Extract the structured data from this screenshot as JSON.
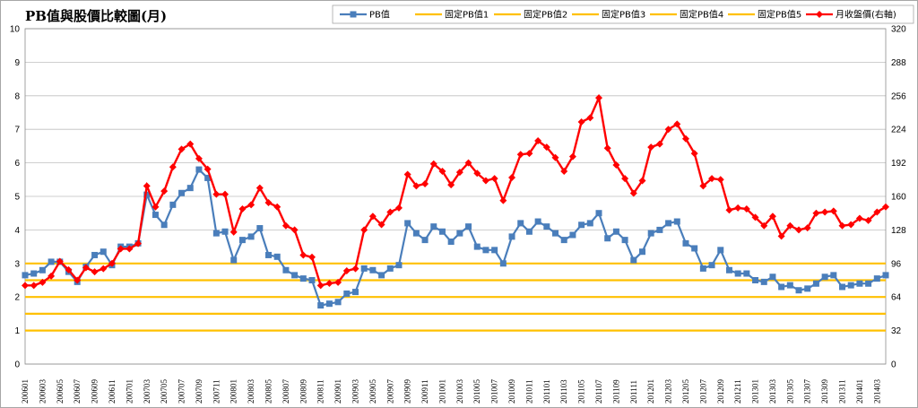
{
  "chart_data": {
    "type": "line",
    "title": "PB值與股價比較圖(月)",
    "colors": {
      "pb": "#4a7ebb",
      "fixed": "#ffc000",
      "price": "#ff0000"
    },
    "y_left": {
      "min": 0,
      "max": 10,
      "ticks": [
        "0",
        "1",
        "2",
        "3",
        "4",
        "5",
        "6",
        "7",
        "8",
        "9",
        "10"
      ]
    },
    "y_right": {
      "min": 0,
      "max": 320,
      "ticks": [
        "0",
        "32",
        "64",
        "96",
        "128",
        "160",
        "192",
        "224",
        "256",
        "288",
        "320"
      ]
    },
    "x_tick_labels": [
      "200601",
      "200603",
      "200605",
      "200607",
      "200609",
      "200611",
      "200701",
      "200703",
      "200705",
      "200707",
      "200709",
      "200711",
      "200801",
      "200803",
      "200805",
      "200807",
      "200809",
      "200811",
      "200901",
      "200903",
      "200905",
      "200907",
      "200909",
      "200911",
      "201001",
      "201003",
      "201005",
      "201007",
      "201009",
      "201011",
      "201101",
      "201103",
      "201105",
      "201107",
      "201109",
      "201111",
      "201201",
      "201203",
      "201205",
      "201207",
      "201209",
      "201211",
      "201301",
      "201303",
      "201305",
      "201307",
      "201309",
      "201311",
      "201401",
      "201403"
    ],
    "fixed_lines": [
      1,
      1.5,
      2,
      2.5,
      3
    ],
    "series": [
      {
        "name": "PB值",
        "axis": "left",
        "values": [
          2.65,
          2.7,
          2.8,
          3.05,
          3.05,
          2.75,
          2.45,
          2.9,
          3.25,
          3.35,
          2.95,
          3.5,
          3.5,
          3.6,
          5.05,
          4.45,
          4.15,
          4.75,
          5.1,
          5.25,
          5.8,
          5.55,
          3.9,
          3.95,
          3.1,
          3.7,
          3.8,
          4.05,
          3.25,
          3.2,
          2.8,
          2.65,
          2.55,
          2.5,
          1.75,
          1.8,
          1.85,
          2.1,
          2.15,
          2.85,
          2.8,
          2.65,
          2.85,
          2.95,
          4.2,
          3.9,
          3.7,
          4.1,
          3.95,
          3.65,
          3.9,
          4.1,
          3.5,
          3.4,
          3.4,
          3.0,
          3.8,
          4.2,
          3.95,
          4.25,
          4.1,
          3.9,
          3.7,
          3.85,
          4.15,
          4.2,
          4.5,
          3.75,
          3.95,
          3.7,
          3.1,
          3.35,
          3.9,
          4.0,
          4.2,
          4.25,
          3.6,
          3.45,
          2.85,
          2.95,
          3.4,
          2.8,
          2.7,
          2.7,
          2.5,
          2.45,
          2.6,
          2.3,
          2.35,
          2.2,
          2.25,
          2.4,
          2.6,
          2.65,
          2.3,
          2.35,
          2.4,
          2.4,
          2.55,
          2.65
        ]
      },
      {
        "name": "固定PB值1",
        "axis": "left",
        "values": [
          1
        ]
      },
      {
        "name": "固定PB值2",
        "axis": "left",
        "values": [
          1.5
        ]
      },
      {
        "name": "固定PB值3",
        "axis": "left",
        "values": [
          2
        ]
      },
      {
        "name": "固定PB值4",
        "axis": "left",
        "values": [
          2.5
        ]
      },
      {
        "name": "固定PB值5",
        "axis": "left",
        "values": [
          3
        ]
      },
      {
        "name": "月收盤價(右軸)",
        "axis": "right",
        "values": [
          75,
          75,
          78,
          84,
          98,
          90,
          80,
          92,
          88,
          91,
          96,
          110,
          110,
          115,
          170,
          150,
          165,
          188,
          205,
          210,
          196,
          186,
          162,
          162,
          126,
          148,
          152,
          168,
          154,
          150,
          132,
          128,
          104,
          102,
          75,
          77,
          78,
          89,
          91,
          128,
          141,
          133,
          145,
          149,
          181,
          170,
          172,
          191,
          184,
          171,
          183,
          192,
          182,
          175,
          177,
          156,
          178,
          200,
          201,
          213,
          207,
          197,
          184,
          198,
          231,
          235,
          254,
          206,
          190,
          177,
          163,
          175,
          207,
          210,
          224,
          229,
          215,
          201,
          170,
          177,
          176,
          147,
          149,
          148,
          140,
          132,
          141,
          122,
          132,
          128,
          130,
          144,
          145,
          146,
          132,
          133,
          139,
          137,
          145,
          150
        ]
      }
    ]
  }
}
